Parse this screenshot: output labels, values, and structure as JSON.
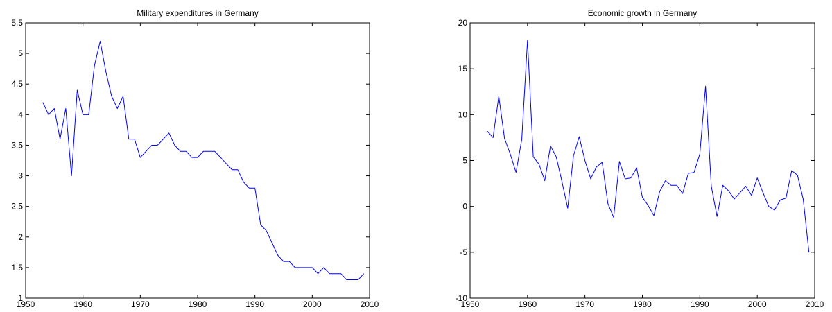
{
  "chart_data": [
    {
      "type": "line",
      "title": "Military expenditures in Germany",
      "xlabel": "",
      "ylabel": "",
      "xlim": [
        1950,
        2010
      ],
      "ylim": [
        1,
        5.5
      ],
      "xticks": [
        1950,
        1960,
        1970,
        1980,
        1990,
        2000,
        2010
      ],
      "yticks": [
        1,
        1.5,
        2,
        2.5,
        3,
        3.5,
        4,
        4.5,
        5,
        5.5
      ],
      "grid": false,
      "line_color": "#0000ff",
      "series": [
        {
          "x": [
            1953,
            1954,
            1955,
            1956,
            1957,
            1958,
            1959,
            1960,
            1961,
            1962,
            1963,
            1964,
            1965,
            1966,
            1967,
            1968,
            1969,
            1970,
            1971,
            1972,
            1973,
            1974,
            1975,
            1976,
            1977,
            1978,
            1979,
            1980,
            1981,
            1982,
            1983,
            1984,
            1985,
            1986,
            1987,
            1988,
            1989,
            1990,
            1991,
            1992,
            1993,
            1994,
            1995,
            1996,
            1997,
            1998,
            1999,
            2000,
            2001,
            2002,
            2003,
            2004,
            2005,
            2006,
            2007,
            2008,
            2009
          ],
          "y": [
            4.2,
            4.0,
            4.1,
            3.6,
            4.1,
            3.0,
            4.4,
            4.0,
            4.0,
            4.8,
            5.2,
            4.7,
            4.3,
            4.1,
            4.3,
            3.6,
            3.6,
            3.3,
            3.4,
            3.5,
            3.5,
            3.6,
            3.7,
            3.5,
            3.4,
            3.4,
            3.3,
            3.3,
            3.4,
            3.4,
            3.4,
            3.3,
            3.2,
            3.1,
            3.1,
            2.9,
            2.8,
            2.8,
            2.2,
            2.1,
            1.9,
            1.7,
            1.6,
            1.6,
            1.5,
            1.5,
            1.5,
            1.5,
            1.4,
            1.5,
            1.4,
            1.4,
            1.4,
            1.3,
            1.3,
            1.3,
            1.4
          ]
        }
      ]
    },
    {
      "type": "line",
      "title": "Economic growth in Germany",
      "xlabel": "",
      "ylabel": "",
      "xlim": [
        1950,
        2010
      ],
      "ylim": [
        -10,
        20
      ],
      "xticks": [
        1950,
        1960,
        1970,
        1980,
        1990,
        2000,
        2010
      ],
      "yticks": [
        -10,
        -5,
        0,
        5,
        10,
        15,
        20
      ],
      "grid": false,
      "line_color": "#0000ff",
      "series": [
        {
          "x": [
            1953,
            1954,
            1955,
            1956,
            1957,
            1958,
            1959,
            1960,
            1961,
            1962,
            1963,
            1964,
            1965,
            1966,
            1967,
            1968,
            1969,
            1970,
            1971,
            1972,
            1973,
            1974,
            1975,
            1976,
            1977,
            1978,
            1979,
            1980,
            1981,
            1982,
            1983,
            1984,
            1985,
            1986,
            1987,
            1988,
            1989,
            1990,
            1991,
            1992,
            1993,
            1994,
            1995,
            1996,
            1997,
            1998,
            1999,
            2000,
            2001,
            2002,
            2003,
            2004,
            2005,
            2006,
            2007,
            2008,
            2009
          ],
          "y": [
            8.2,
            7.5,
            12.0,
            7.4,
            5.7,
            3.7,
            7.3,
            18.1,
            5.4,
            4.6,
            2.8,
            6.6,
            5.4,
            2.7,
            -0.2,
            5.5,
            7.6,
            5.0,
            3.0,
            4.3,
            4.8,
            0.3,
            -1.2,
            4.9,
            3.0,
            3.1,
            4.2,
            1.0,
            0.1,
            -1.0,
            1.6,
            2.8,
            2.3,
            2.3,
            1.4,
            3.6,
            3.7,
            5.7,
            13.1,
            2.2,
            -1.1,
            2.3,
            1.7,
            0.8,
            1.5,
            2.2,
            1.2,
            3.1,
            1.5,
            0.0,
            -0.4,
            0.7,
            0.9,
            3.9,
            3.4,
            0.8,
            -5.0
          ]
        }
      ]
    }
  ]
}
